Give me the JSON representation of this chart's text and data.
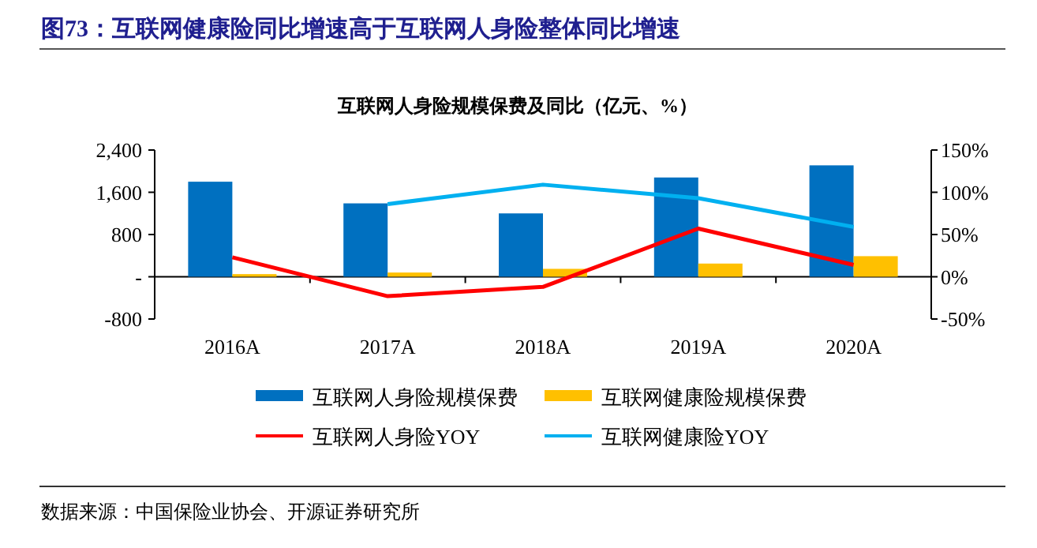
{
  "chart_data": {
    "type": "bar",
    "title": "图73：互联网健康险同比增速高于互联网人身险整体同比增速",
    "subtitle": "互联网人身险规模保费及同比（亿元、%）",
    "categories": [
      "2016A",
      "2017A",
      "2018A",
      "2019A",
      "2020A"
    ],
    "series": [
      {
        "name": "互联网人身险规模保费",
        "color": "#0070c0",
        "values": [
          1800,
          1390,
          1200,
          1880,
          2110
        ]
      },
      {
        "name": "互联网健康险规模保费",
        "color": "#ffc000",
        "values": [
          50,
          80,
          150,
          250,
          390
        ]
      },
      {
        "name": "互联网人身险YOY",
        "type": "line",
        "axis": "y2",
        "color": "#ff0000",
        "values": [
          23,
          -23,
          -12,
          57,
          14
        ]
      },
      {
        "name": "互联网健康险YOY",
        "type": "line",
        "axis": "y2",
        "color": "#00b0f0",
        "values": [
          null,
          86,
          109,
          93,
          59
        ]
      }
    ],
    "ylim": [
      -800,
      2400
    ],
    "yticks": [
      {
        "value": -800,
        "label": "-800"
      },
      {
        "value": 0,
        "label": "-"
      },
      {
        "value": 800,
        "label": "800"
      },
      {
        "value": 1600,
        "label": "1,600"
      },
      {
        "value": 2400,
        "label": "2,400"
      }
    ],
    "y2lim": [
      -50,
      150
    ],
    "y2ticks": [
      {
        "value": -50,
        "label": "-50%"
      },
      {
        "value": 0,
        "label": "0%"
      },
      {
        "value": 50,
        "label": "50%"
      },
      {
        "value": 100,
        "label": "100%"
      },
      {
        "value": 150,
        "label": "150%"
      }
    ],
    "legend": "bottom",
    "marker": "none",
    "annotations": [
      "数据来源：中国保险业协会、开源证券研究所"
    ]
  }
}
